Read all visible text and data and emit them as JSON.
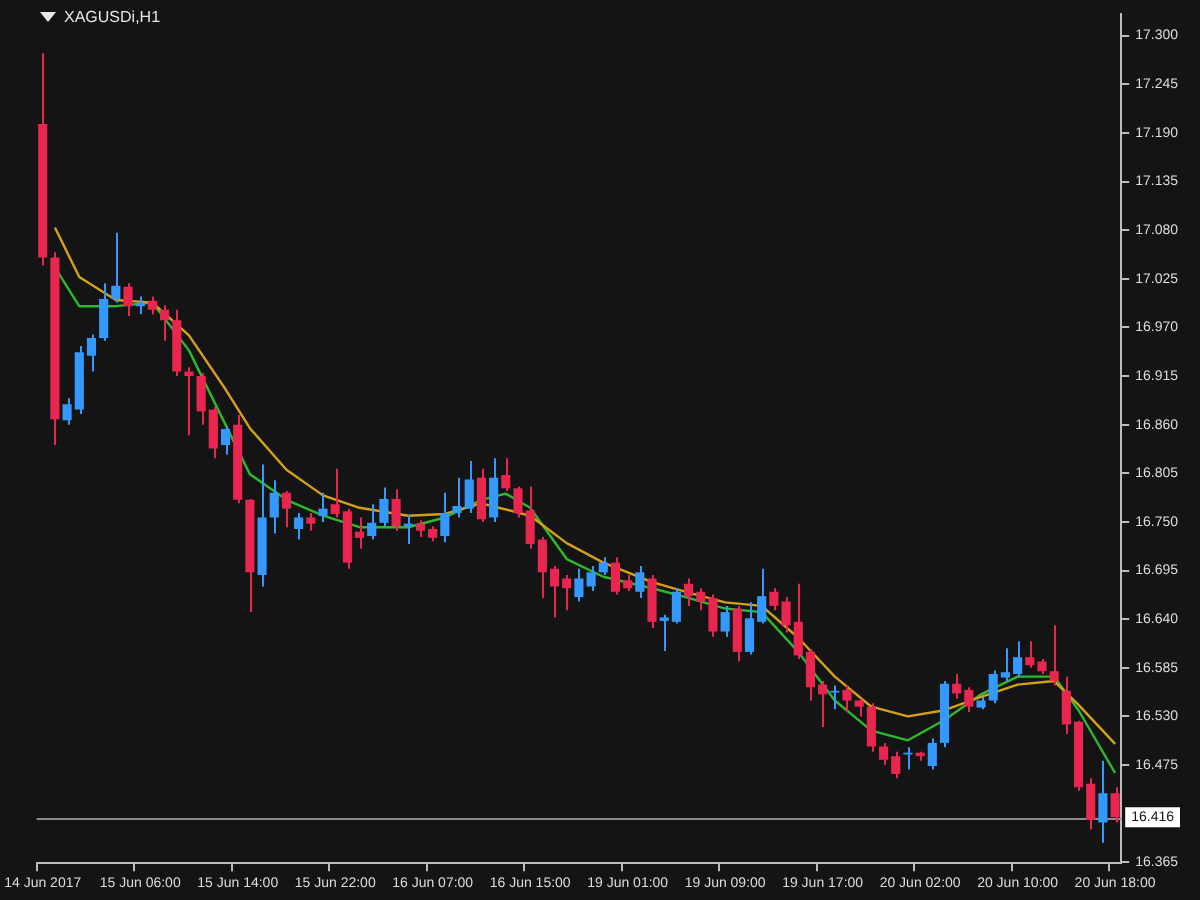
{
  "chart_data": {
    "type": "candlestick",
    "title": "XAGUSDi,H1",
    "categories": [
      "14 Jun 2017",
      null,
      null,
      null,
      null,
      null,
      null,
      null,
      "15 Jun 06:00",
      null,
      null,
      null,
      null,
      null,
      null,
      null,
      "15 Jun 14:00",
      null,
      null,
      null,
      null,
      null,
      null,
      null,
      "15 Jun 22:00",
      null,
      null,
      null,
      null,
      null,
      null,
      null,
      "16 Jun 07:00",
      null,
      null,
      null,
      null,
      null,
      null,
      null,
      "16 Jun 15:00",
      null,
      null,
      null,
      null,
      null,
      null,
      null,
      "19 Jun 01:00",
      null,
      null,
      null,
      null,
      null,
      null,
      null,
      "19 Jun 09:00",
      null,
      null,
      null,
      null,
      null,
      null,
      null,
      "19 Jun 17:00",
      null,
      null,
      null,
      null,
      null,
      null,
      null,
      "20 Jun 02:00",
      null,
      null,
      null,
      null,
      null,
      null,
      null,
      "20 Jun 10:00",
      null,
      null,
      null,
      null,
      null,
      null,
      null,
      "20 Jun 18:00"
    ],
    "ohlc": [
      [
        17.2,
        17.28,
        17.04,
        17.049
      ],
      [
        17.049,
        17.055,
        16.837,
        16.866
      ],
      [
        16.865,
        16.89,
        16.86,
        16.883
      ],
      [
        16.877,
        16.949,
        16.872,
        16.942
      ],
      [
        16.938,
        16.962,
        16.92,
        16.958
      ],
      [
        16.958,
        17.02,
        16.955,
        17.002
      ],
      [
        17.002,
        17.077,
        16.998,
        17.017
      ],
      [
        17.016,
        17.02,
        16.983,
        16.994
      ],
      [
        16.994,
        17.005,
        16.985,
        16.998
      ],
      [
        17.0,
        17.005,
        16.985,
        16.99
      ],
      [
        16.99,
        16.995,
        16.955,
        16.978
      ],
      [
        16.978,
        16.99,
        16.915,
        16.92
      ],
      [
        16.92,
        16.925,
        16.848,
        16.915
      ],
      [
        16.915,
        16.918,
        16.86,
        16.875
      ],
      [
        16.877,
        16.88,
        16.822,
        16.833
      ],
      [
        16.837,
        16.858,
        16.826,
        16.855
      ],
      [
        16.86,
        16.871,
        16.771,
        16.775
      ],
      [
        16.775,
        16.776,
        16.648,
        16.693
      ],
      [
        16.69,
        16.815,
        16.677,
        16.755
      ],
      [
        16.755,
        16.797,
        16.737,
        16.783
      ],
      [
        16.783,
        16.785,
        16.744,
        16.765
      ],
      [
        16.742,
        16.76,
        16.73,
        16.755
      ],
      [
        16.755,
        16.76,
        16.74,
        16.748
      ],
      [
        16.757,
        16.783,
        16.75,
        16.765
      ],
      [
        16.77,
        16.81,
        16.755,
        16.759
      ],
      [
        16.762,
        16.765,
        16.697,
        16.704
      ],
      [
        16.739,
        16.755,
        16.72,
        16.732
      ],
      [
        16.734,
        16.77,
        16.73,
        16.749
      ],
      [
        16.749,
        16.789,
        16.745,
        16.776
      ],
      [
        16.776,
        16.787,
        16.74,
        16.745
      ],
      [
        16.745,
        16.758,
        16.725,
        16.748
      ],
      [
        16.748,
        16.752,
        16.733,
        16.74
      ],
      [
        16.742,
        16.745,
        16.728,
        16.732
      ],
      [
        16.734,
        16.783,
        16.727,
        16.76
      ],
      [
        16.76,
        16.8,
        16.755,
        16.768
      ],
      [
        16.765,
        16.819,
        16.76,
        16.798
      ],
      [
        16.8,
        16.81,
        16.75,
        16.753
      ],
      [
        16.755,
        16.822,
        16.75,
        16.8
      ],
      [
        16.803,
        16.822,
        16.785,
        16.788
      ],
      [
        16.788,
        16.79,
        16.755,
        16.76
      ],
      [
        16.763,
        16.79,
        16.72,
        16.725
      ],
      [
        16.73,
        16.733,
        16.664,
        16.693
      ],
      [
        16.697,
        16.7,
        16.642,
        16.677
      ],
      [
        16.686,
        16.69,
        16.65,
        16.675
      ],
      [
        16.665,
        16.697,
        16.66,
        16.686
      ],
      [
        16.677,
        16.7,
        16.672,
        16.693
      ],
      [
        16.693,
        16.71,
        16.69,
        16.704
      ],
      [
        16.704,
        16.71,
        16.668,
        16.671
      ],
      [
        16.684,
        16.69,
        16.672,
        16.675
      ],
      [
        16.671,
        16.7,
        16.664,
        16.693
      ],
      [
        16.686,
        16.69,
        16.63,
        16.637
      ],
      [
        16.638,
        16.645,
        16.604,
        16.642
      ],
      [
        16.637,
        16.675,
        16.635,
        16.671
      ],
      [
        16.68,
        16.686,
        16.655,
        16.666
      ],
      [
        16.671,
        16.675,
        16.65,
        16.66
      ],
      [
        16.664,
        16.668,
        16.62,
        16.626
      ],
      [
        16.626,
        16.655,
        16.62,
        16.648
      ],
      [
        16.652,
        16.655,
        16.592,
        16.603
      ],
      [
        16.603,
        16.659,
        16.6,
        16.641
      ],
      [
        16.637,
        16.697,
        16.635,
        16.666
      ],
      [
        16.671,
        16.675,
        16.65,
        16.655
      ],
      [
        16.66,
        16.665,
        16.625,
        16.633
      ],
      [
        16.637,
        16.68,
        16.595,
        16.599
      ],
      [
        16.603,
        16.606,
        16.548,
        16.563
      ],
      [
        16.566,
        16.57,
        16.518,
        16.555
      ],
      [
        16.557,
        16.565,
        16.538,
        16.559
      ],
      [
        16.56,
        16.565,
        16.535,
        16.548
      ],
      [
        16.548,
        16.55,
        16.53,
        16.541
      ],
      [
        16.541,
        16.545,
        16.49,
        16.496
      ],
      [
        16.496,
        16.5,
        16.475,
        16.481
      ],
      [
        16.485,
        16.49,
        16.46,
        16.465
      ],
      [
        16.487,
        16.495,
        16.47,
        16.489
      ],
      [
        16.489,
        16.49,
        16.48,
        16.485
      ],
      [
        16.474,
        16.505,
        16.47,
        16.5
      ],
      [
        16.5,
        16.57,
        16.495,
        16.567
      ],
      [
        16.567,
        16.578,
        16.55,
        16.556
      ],
      [
        16.56,
        16.563,
        16.535,
        16.541
      ],
      [
        16.54,
        16.552,
        16.538,
        16.548
      ],
      [
        16.548,
        16.582,
        16.545,
        16.578
      ],
      [
        16.574,
        16.607,
        16.57,
        16.58
      ],
      [
        16.578,
        16.615,
        16.575,
        16.597
      ],
      [
        16.597,
        16.615,
        16.585,
        16.588
      ],
      [
        16.592,
        16.595,
        16.578,
        16.581
      ],
      [
        16.581,
        16.633,
        16.565,
        16.57
      ],
      [
        16.559,
        16.575,
        16.51,
        16.521
      ],
      [
        16.524,
        16.525,
        16.446,
        16.45
      ],
      [
        16.454,
        16.46,
        16.402,
        16.413
      ],
      [
        16.41,
        16.48,
        16.387,
        16.443
      ],
      [
        16.443,
        16.45,
        16.41,
        16.416
      ]
    ],
    "series": [
      {
        "type": "line",
        "color": "#d4a017",
        "values": [
          null,
          17.083,
          null,
          17.027,
          null,
          null,
          17.001,
          null,
          null,
          16.998,
          null,
          null,
          16.961,
          null,
          null,
          16.9,
          null,
          16.856,
          null,
          null,
          16.809,
          null,
          null,
          16.78,
          null,
          null,
          16.766,
          null,
          null,
          null,
          16.757,
          null,
          null,
          16.759,
          null,
          null,
          16.771,
          null,
          null,
          null,
          16.757,
          null,
          null,
          16.726,
          null,
          null,
          16.704,
          null,
          null,
          null,
          16.682,
          null,
          null,
          16.67,
          null,
          null,
          16.659,
          null,
          null,
          16.655,
          null,
          null,
          16.619,
          null,
          null,
          16.575,
          null,
          null,
          16.541,
          null,
          null,
          16.53,
          null,
          null,
          16.537,
          null,
          null,
          16.552,
          null,
          null,
          16.566,
          null,
          null,
          16.57,
          null,
          16.543,
          null,
          null,
          16.499
        ]
      },
      {
        "type": "line",
        "color": "#2db82d",
        "values": [
          null,
          17.038,
          null,
          16.994,
          null,
          null,
          16.994,
          null,
          null,
          16.998,
          null,
          null,
          16.944,
          null,
          null,
          16.86,
          null,
          16.804,
          null,
          null,
          16.775,
          null,
          null,
          16.757,
          null,
          null,
          16.744,
          null,
          null,
          null,
          16.744,
          null,
          null,
          16.755,
          null,
          null,
          16.775,
          null,
          16.782,
          null,
          16.766,
          null,
          null,
          16.708,
          null,
          null,
          16.688,
          null,
          null,
          null,
          16.675,
          null,
          null,
          16.664,
          null,
          null,
          16.652,
          null,
          null,
          16.648,
          null,
          null,
          16.603,
          null,
          null,
          16.548,
          null,
          null,
          16.514,
          null,
          null,
          16.503,
          null,
          null,
          16.526,
          null,
          null,
          16.555,
          null,
          null,
          16.575,
          null,
          null,
          16.575,
          null,
          16.537,
          null,
          null,
          16.466
        ]
      }
    ],
    "ylim": [
      16.364,
      17.324
    ],
    "yticks": [
      {
        "value": 17.3,
        "label": "17.300"
      },
      {
        "value": 17.245,
        "label": "17.245"
      },
      {
        "value": 17.19,
        "label": "17.190"
      },
      {
        "value": 17.135,
        "label": "17.135"
      },
      {
        "value": 17.08,
        "label": "17.080"
      },
      {
        "value": 17.025,
        "label": "17.025"
      },
      {
        "value": 16.97,
        "label": "16.970"
      },
      {
        "value": 16.915,
        "label": "16.915"
      },
      {
        "value": 16.86,
        "label": "16.860"
      },
      {
        "value": 16.805,
        "label": "16.805"
      },
      {
        "value": 16.75,
        "label": "16.750"
      },
      {
        "value": 16.695,
        "label": "16.695"
      },
      {
        "value": 16.64,
        "label": "16.640"
      },
      {
        "value": 16.585,
        "label": "16.585"
      },
      {
        "value": 16.53,
        "label": "16.530"
      },
      {
        "value": 16.475,
        "label": "16.475"
      },
      {
        "value": 16.365,
        "label": "16.365"
      }
    ],
    "ref_lines": [
      {
        "axis": "y",
        "value": 16.416,
        "label": "16.416",
        "color": "#8c8c8c"
      }
    ],
    "grid": false,
    "legend": false
  }
}
